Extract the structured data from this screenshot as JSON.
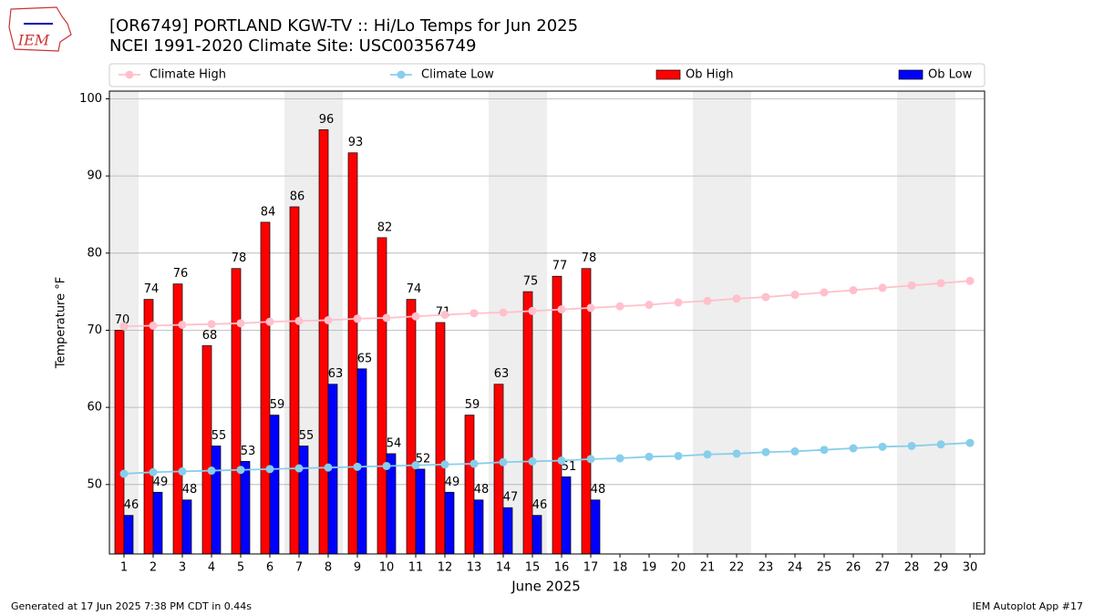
{
  "header": {
    "logo_text": "IEM"
  },
  "chart_data": {
    "type": "bar",
    "title": "[OR6749] PORTLAND KGW-TV :: Hi/Lo Temps for Jun 2025",
    "subtitle": "NCEI 1991-2020 Climate Site: USC00356749",
    "x_label": "June 2025",
    "y_label": "Temperature °F",
    "categories": [
      "1",
      "2",
      "3",
      "4",
      "5",
      "6",
      "7",
      "8",
      "9",
      "10",
      "11",
      "12",
      "13",
      "14",
      "15",
      "16",
      "17",
      "18",
      "19",
      "20",
      "21",
      "22",
      "23",
      "24",
      "25",
      "26",
      "27",
      "28",
      "29",
      "30"
    ],
    "shaded_days": [
      1,
      7,
      8,
      14,
      15,
      21,
      22,
      28,
      29
    ],
    "ylim": [
      41,
      101
    ],
    "yticks": [
      50,
      60,
      70,
      80,
      90,
      100
    ],
    "grid": true,
    "series": [
      {
        "name": "Climate High",
        "type": "line",
        "color": "#ffc0cb",
        "values": [
          70.5,
          70.6,
          70.7,
          70.8,
          70.9,
          71.1,
          71.2,
          71.3,
          71.5,
          71.6,
          71.8,
          72.0,
          72.2,
          72.3,
          72.5,
          72.7,
          72.9,
          73.1,
          73.3,
          73.6,
          73.8,
          74.1,
          74.3,
          74.6,
          74.9,
          75.2,
          75.5,
          75.8,
          76.1,
          76.4
        ]
      },
      {
        "name": "Climate Low",
        "type": "line",
        "color": "#87ceeb",
        "values": [
          51.4,
          51.6,
          51.7,
          51.8,
          51.9,
          52.0,
          52.1,
          52.2,
          52.3,
          52.4,
          52.5,
          52.6,
          52.7,
          52.9,
          53.0,
          53.1,
          53.3,
          53.4,
          53.6,
          53.7,
          53.9,
          54.0,
          54.2,
          54.3,
          54.5,
          54.7,
          54.9,
          55.0,
          55.2,
          55.4
        ]
      },
      {
        "name": "Ob High",
        "type": "bar",
        "color": "#ff0000",
        "values": [
          70,
          74,
          76,
          68,
          78,
          84,
          86,
          96,
          93,
          82,
          74,
          71,
          59,
          63,
          75,
          77,
          78,
          null,
          null,
          null,
          null,
          null,
          null,
          null,
          null,
          null,
          null,
          null,
          null,
          null
        ]
      },
      {
        "name": "Ob Low",
        "type": "bar",
        "color": "#0000ff",
        "values": [
          46,
          49,
          48,
          55,
          53,
          59,
          55,
          63,
          65,
          54,
          52,
          49,
          48,
          47,
          46,
          51,
          48,
          null,
          null,
          null,
          null,
          null,
          null,
          null,
          null,
          null,
          null,
          null,
          null,
          null
        ]
      }
    ]
  },
  "footer": {
    "left": "Generated at 17 Jun 2025 7:38 PM CDT in 0.44s",
    "right": "IEM Autoplot App #17"
  }
}
